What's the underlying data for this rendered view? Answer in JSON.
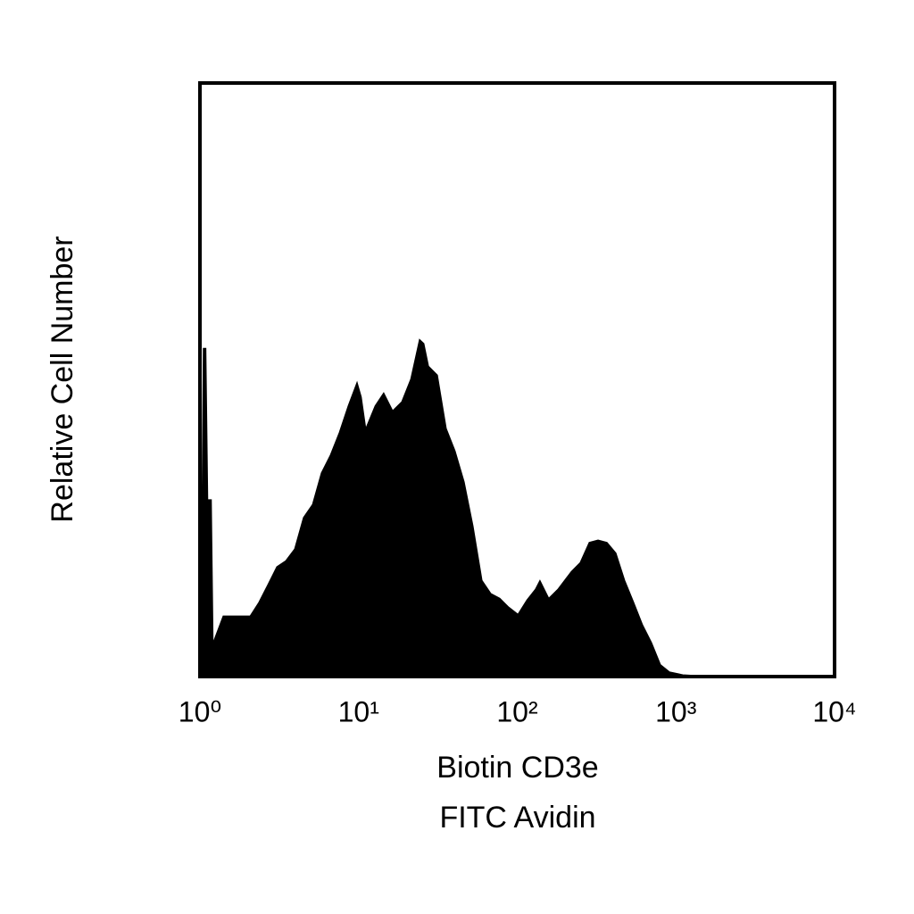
{
  "chart_data": {
    "type": "area",
    "x_label": [
      "Biotin CD3e",
      "FITC Avidin"
    ],
    "y_label": "Relative Cell Number",
    "xscale": "log",
    "xlim": [
      1,
      10000
    ],
    "xticks": [
      {
        "value": 1,
        "label": "10⁰"
      },
      {
        "value": 10,
        "label": "10¹"
      },
      {
        "value": 100,
        "label": "10²"
      },
      {
        "value": 1000,
        "label": "10³"
      },
      {
        "value": 10000,
        "label": "10⁴"
      }
    ],
    "ylim": [
      0,
      100
    ],
    "color": "#000000",
    "x": [
      1.01,
      1.05,
      1.09,
      1.12,
      1.18,
      1.21,
      1.4,
      1.59,
      1.81,
      2.07,
      2.35,
      2.68,
      3.05,
      3.47,
      3.95,
      4.49,
      5.12,
      5.82,
      6.63,
      7.55,
      8.59,
      9.78,
      10.4,
      11.1,
      12.7,
      14.4,
      16.4,
      18.7,
      21.3,
      24.2,
      25.8,
      27.6,
      31.4,
      35.7,
      40.6,
      46.3,
      52.7,
      60.0,
      68.2,
      77.7,
      88.4,
      101,
      115,
      130,
      139,
      158,
      180,
      219,
      249,
      284,
      323,
      368,
      419,
      476,
      542,
      617,
      703,
      800,
      910,
      1106,
      1740,
      10000
    ],
    "values": [
      0,
      55.3,
      55.3,
      29.8,
      29.8,
      5.7,
      10.2,
      10.2,
      10.2,
      10.2,
      12.5,
      15.5,
      18.5,
      19.5,
      21.5,
      26.8,
      29.0,
      34.3,
      37.3,
      41.1,
      45.6,
      49.6,
      47.1,
      41.8,
      45.6,
      47.8,
      44.8,
      46.3,
      50.1,
      56.8,
      56.1,
      52.3,
      50.8,
      41.8,
      38.0,
      32.8,
      25.3,
      16.2,
      14.0,
      13.2,
      11.7,
      10.5,
      12.9,
      14.7,
      16.2,
      13.2,
      14.7,
      17.7,
      19.2,
      22.6,
      23.0,
      22.6,
      20.8,
      16.2,
      12.5,
      8.7,
      5.7,
      2.0,
      0.8,
      0.3,
      0,
      0
    ]
  }
}
